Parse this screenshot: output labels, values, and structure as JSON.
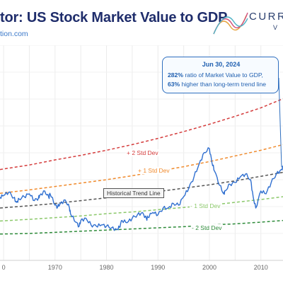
{
  "header": {
    "title": "tor: US Stock Market Value to GDP",
    "url": "tion.com",
    "logo_word": "CURRE",
    "logo_sub": "V"
  },
  "callout": {
    "date": "Jun 30, 2024",
    "line1_value": "282%",
    "line1_text": " ratio of Market Value to GDP,",
    "line2_value": "63%",
    "line2_text": " higher than long-term trend line"
  },
  "bands": {
    "plus2": "+ 2 Std Dev",
    "plus1": "+ 1 Std Dev",
    "trend": "Historical Trend Line",
    "minus1": "- 1 Std Dev",
    "minus2": "- 2 Std Dev"
  },
  "colors": {
    "title": "#1f2d6b",
    "series": "#2f6fd0",
    "plus2": "#d43b3b",
    "plus1": "#f08a2c",
    "trend": "#555555",
    "minus1": "#8bc86a",
    "minus2": "#2e8b3a"
  },
  "chart_data": {
    "type": "line",
    "title": "tor: US Stock Market Value to GDP",
    "x_ticks": [
      "0",
      "1970",
      "1980",
      "1990",
      "2000",
      "2010"
    ],
    "xlim": [
      1959.3,
      2014.3
    ],
    "grid": true,
    "series": [
      {
        "x": [
          1959.3,
          1960,
          1961,
          1962,
          1962.5,
          1963,
          1964,
          1965,
          1966,
          1966.8,
          1967,
          1968,
          1968.8,
          1969,
          1970,
          1970.5,
          1971,
          1972,
          1972.8,
          1973,
          1974,
          1974.7,
          1975,
          1976,
          1977,
          1978,
          1979,
          1980,
          1981,
          1982,
          1982.5,
          1983,
          1984,
          1985,
          1986,
          1987,
          1987.8,
          1988,
          1989,
          1990,
          1991,
          1992,
          1993,
          1994,
          1995,
          1996,
          1997,
          1998,
          1999,
          2000,
          2000.5,
          2001,
          2002,
          2002.8,
          2003,
          2004,
          2005,
          2006,
          2007,
          2008,
          2008.5,
          2009,
          2010,
          2011,
          2012,
          2013,
          2014,
          2014.3
        ],
        "y": [
          89,
          92,
          98,
          88,
          80,
          86,
          90,
          95,
          83,
          88,
          92,
          100,
          88,
          96,
          75,
          72,
          78,
          84,
          70,
          60,
          45,
          38,
          48,
          52,
          40,
          38,
          40,
          38,
          35,
          32,
          36,
          48,
          44,
          52,
          58,
          62,
          50,
          54,
          62,
          58,
          70,
          70,
          78,
          75,
          90,
          105,
          125,
          148,
          168,
          175,
          150,
          135,
          110,
          95,
          100,
          112,
          115,
          125,
          130,
          120,
          90,
          70,
          100,
          95,
          115,
          130,
          138,
          142
        ]
      }
    ],
    "bands": [
      {
        "name": "+ 2 Std Dev",
        "x": [
          1959.3,
          1965,
          1970,
          1975,
          1980,
          1985,
          1990,
          1995,
          2000,
          2005,
          2010,
          2014.3
        ],
        "y": [
          138,
          146,
          155,
          163,
          172,
          182,
          193,
          205,
          218,
          232,
          247,
          263
        ]
      },
      {
        "name": "+ 1 Std Dev",
        "x": [
          1959.3,
          1965,
          1970,
          1975,
          1980,
          1985,
          1990,
          1995,
          2000,
          2005,
          2010,
          2014.3
        ],
        "y": [
          96,
          102,
          108,
          114,
          120,
          127,
          135,
          143,
          152,
          162,
          172,
          182
        ]
      },
      {
        "name": "Historical Trend Line",
        "x": [
          1959.3,
          1965,
          1970,
          1975,
          1980,
          1985,
          1990,
          1995,
          2000,
          2005,
          2010,
          2014.3
        ],
        "y": [
          70,
          74,
          78,
          83,
          88,
          93,
          99,
          105,
          111,
          118,
          126,
          133
        ]
      },
      {
        "name": "- 1 Std Dev",
        "x": [
          1959.3,
          1965,
          1970,
          1975,
          1980,
          1985,
          1990,
          1995,
          2000,
          2005,
          2010,
          2014.3
        ],
        "y": [
          47,
          50,
          53,
          56,
          60,
          63,
          67,
          71,
          75,
          80,
          85,
          90
        ]
      },
      {
        "name": "- 2 Std Dev",
        "x": [
          1959.3,
          1965,
          1970,
          1975,
          1980,
          1985,
          1990,
          1995,
          2000,
          2005,
          2010,
          2014.3
        ],
        "y": [
          24,
          25,
          27,
          29,
          31,
          33,
          35,
          37,
          40,
          42,
          45,
          48
        ]
      }
    ]
  }
}
